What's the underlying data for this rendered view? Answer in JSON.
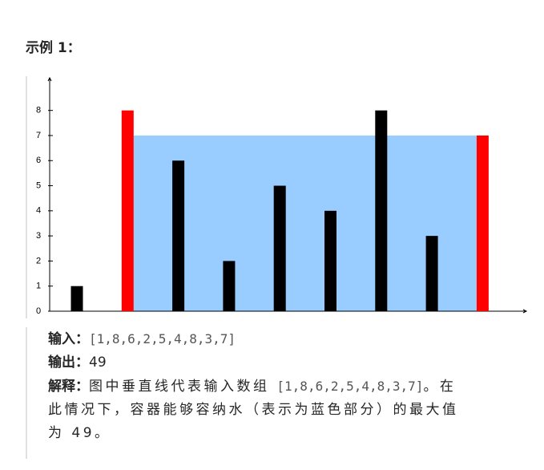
{
  "heading": "示例 1：",
  "chart_data": {
    "type": "bar",
    "categories": [
      null,
      null,
      null,
      null,
      null,
      null,
      null,
      null,
      null
    ],
    "values": [
      1,
      8,
      6,
      2,
      5,
      4,
      8,
      3,
      7
    ],
    "colors": [
      "#000000",
      "#ff0000",
      "#000000",
      "#000000",
      "#000000",
      "#000000",
      "#000000",
      "#000000",
      "#ff0000"
    ],
    "ylim": [
      0,
      9.3
    ],
    "yticks": [
      0,
      1,
      2,
      3,
      4,
      5,
      6,
      7,
      8
    ],
    "water": {
      "between": [
        1,
        8
      ],
      "level": 7,
      "color": "#99ccff"
    }
  },
  "example": {
    "input_label": "输入：",
    "input": "[1,8,6,2,5,4,8,3,7]",
    "output_label": "输出：",
    "output": "49",
    "explanation_label": "解释：",
    "explanation": [
      "图中垂直线代表输入数组 ",
      "[1,8,6,2,5,4,8,3,7]",
      "。在",
      "此情况下，容器能够容纳水（表示为蓝色部分）的最大值",
      "为 49。"
    ]
  }
}
